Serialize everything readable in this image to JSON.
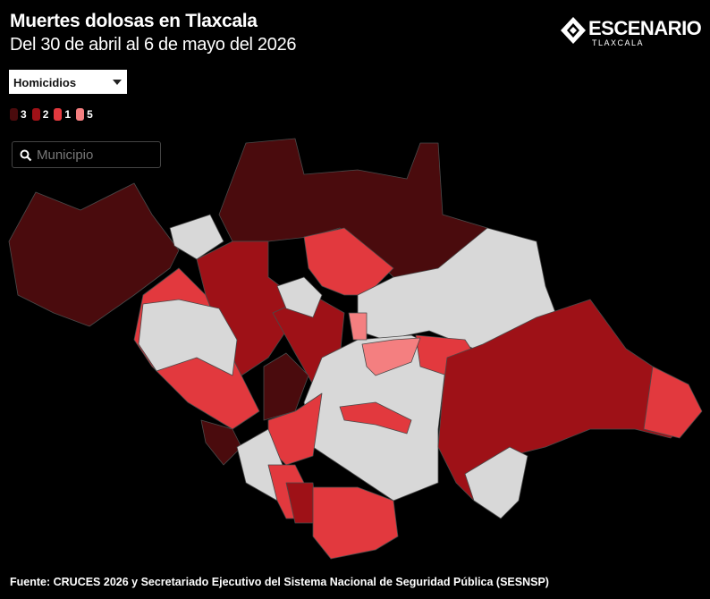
{
  "header": {
    "title": "Muertes dolosas en Tlaxcala",
    "subtitle": "Del 30 de abril al 6 de mayo del 2026"
  },
  "logo": {
    "name": "ESCENARIO",
    "place": "TLAXCALA"
  },
  "dropdown": {
    "selected": "Homicidios"
  },
  "legend": {
    "items": [
      {
        "value": 3,
        "color": "#4a0b0d"
      },
      {
        "value": 2,
        "color": "#9e1117"
      },
      {
        "value": 1,
        "color": "#e2393e"
      },
      {
        "value": 5,
        "color": "#f47f80"
      }
    ]
  },
  "search": {
    "placeholder": "Municipio"
  },
  "footer": {
    "source": "Fuente: CRUCES 2026 y Secretariado Ejecutivo del Sistema Nacional de Seguridad Pública (SESNSP)"
  }
}
